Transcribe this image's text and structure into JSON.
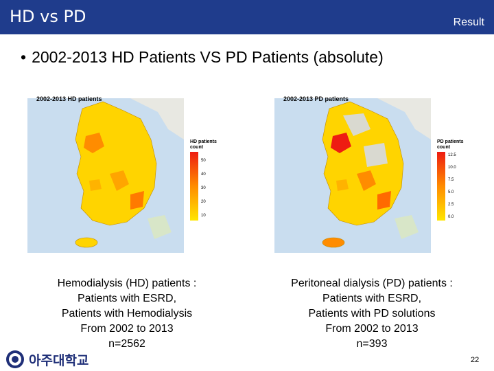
{
  "header": {
    "title": "HD vs PD",
    "section": "Result"
  },
  "bullet": {
    "symbol": "•",
    "text": "2002-2013 HD Patients VS PD Patients (absolute)"
  },
  "maps": [
    {
      "title": "2002-2013 HD patients",
      "legend_title_line1": "HD patients",
      "legend_title_line2": "count",
      "legend_ticks": [
        "50",
        "40",
        "30",
        "20",
        "10"
      ]
    },
    {
      "title": "2002-2013 PD patients",
      "legend_title_line1": "PD patients",
      "legend_title_line2": "count",
      "legend_ticks": [
        "12.5",
        "10.0",
        "7.5",
        "5.0",
        "2.5",
        "0.0"
      ]
    }
  ],
  "captions": [
    {
      "lines": [
        "Hemodialysis (HD) patients :",
        "Patients with ESRD,",
        "Patients with Hemodialysis",
        "From 2002 to 2013",
        "n=2562"
      ]
    },
    {
      "lines": [
        "Peritoneal dialysis (PD) patients :",
        "Patients with ESRD,",
        "Patients with PD solutions",
        "From 2002 to 2013",
        "n=393"
      ]
    }
  ],
  "footer": {
    "logo_text": "아주대학교",
    "page_number": "22"
  },
  "colors": {
    "header_bg": "#1f3c8c",
    "logo_text": "#1f2f78"
  }
}
